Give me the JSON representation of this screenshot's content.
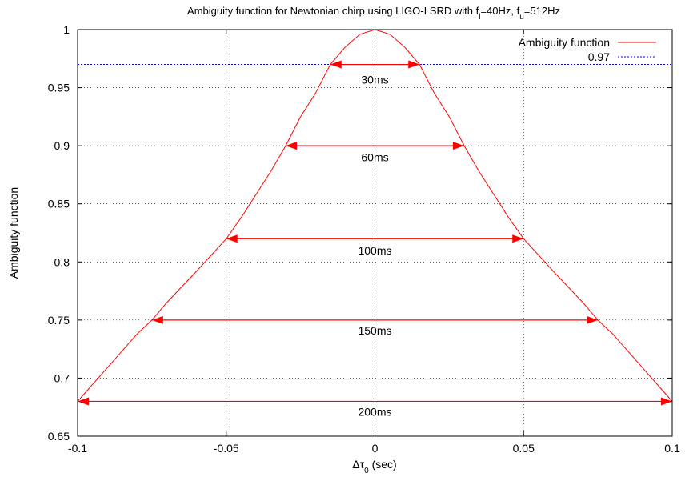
{
  "chart_data": {
    "type": "line",
    "title": {
      "prefix": "Ambiguity function for Newtonian chirp using LIGO-I SRD with f",
      "sub1": "l",
      "middle": "=40Hz, f",
      "sub2": "u",
      "suffix": "=512Hz"
    },
    "xlabel": {
      "prefix": "Δτ",
      "sub": "0",
      "suffix": " (sec)"
    },
    "ylabel": "Ambiguity function",
    "xlim": [
      -0.1,
      0.1
    ],
    "ylim": [
      0.65,
      1.0
    ],
    "xticks": [
      {
        "value": -0.1,
        "label": "-0.1"
      },
      {
        "value": -0.05,
        "label": "-0.05"
      },
      {
        "value": 0,
        "label": "0"
      },
      {
        "value": 0.05,
        "label": "0.05"
      },
      {
        "value": 0.1,
        "label": "0.1"
      }
    ],
    "yticks": [
      {
        "value": 0.65,
        "label": "0.65"
      },
      {
        "value": 0.7,
        "label": "0.7"
      },
      {
        "value": 0.75,
        "label": "0.75"
      },
      {
        "value": 0.8,
        "label": "0.8"
      },
      {
        "value": 0.85,
        "label": "0.85"
      },
      {
        "value": 0.9,
        "label": "0.9"
      },
      {
        "value": 0.95,
        "label": "0.95"
      },
      {
        "value": 1.0,
        "label": "1"
      }
    ],
    "grid": true,
    "legend_position": "top-right",
    "series": [
      {
        "name": "Ambiguity function",
        "color": "#ff0000",
        "style": "solid",
        "x": [
          -0.1,
          -0.09,
          -0.08,
          -0.075,
          -0.07,
          -0.06,
          -0.05,
          -0.045,
          -0.04,
          -0.035,
          -0.03,
          -0.025,
          -0.02,
          -0.015,
          -0.01,
          -0.005,
          0,
          0.005,
          0.01,
          0.015,
          0.02,
          0.025,
          0.03,
          0.035,
          0.04,
          0.045,
          0.05,
          0.06,
          0.07,
          0.075,
          0.08,
          0.09,
          0.1
        ],
        "y": [
          0.68,
          0.709,
          0.738,
          0.75,
          0.765,
          0.792,
          0.82,
          0.838,
          0.858,
          0.878,
          0.9,
          0.925,
          0.945,
          0.97,
          0.985,
          0.996,
          1.0,
          0.996,
          0.985,
          0.97,
          0.945,
          0.925,
          0.9,
          0.878,
          0.858,
          0.838,
          0.82,
          0.792,
          0.765,
          0.75,
          0.738,
          0.709,
          0.68
        ]
      },
      {
        "name": "0.97",
        "color": "#0000ff",
        "style": "dotted",
        "x": [
          -0.1,
          0.1
        ],
        "y": [
          0.97,
          0.97
        ]
      }
    ],
    "annotations": [
      {
        "label": "30ms",
        "x1": -0.015,
        "x2": 0.015,
        "y": 0.97,
        "label_y": 0.957
      },
      {
        "label": "60ms",
        "x1": -0.03,
        "x2": 0.03,
        "y": 0.9,
        "label_y": 0.89
      },
      {
        "label": "100ms",
        "x1": -0.05,
        "x2": 0.05,
        "y": 0.82,
        "label_y": 0.81
      },
      {
        "label": "150ms",
        "x1": -0.075,
        "x2": 0.075,
        "y": 0.75,
        "label_y": 0.741
      },
      {
        "label": "200ms",
        "x1": -0.1,
        "x2": 0.1,
        "y": 0.68,
        "label_y": 0.671
      }
    ],
    "annotation_color": "#ff0000"
  }
}
